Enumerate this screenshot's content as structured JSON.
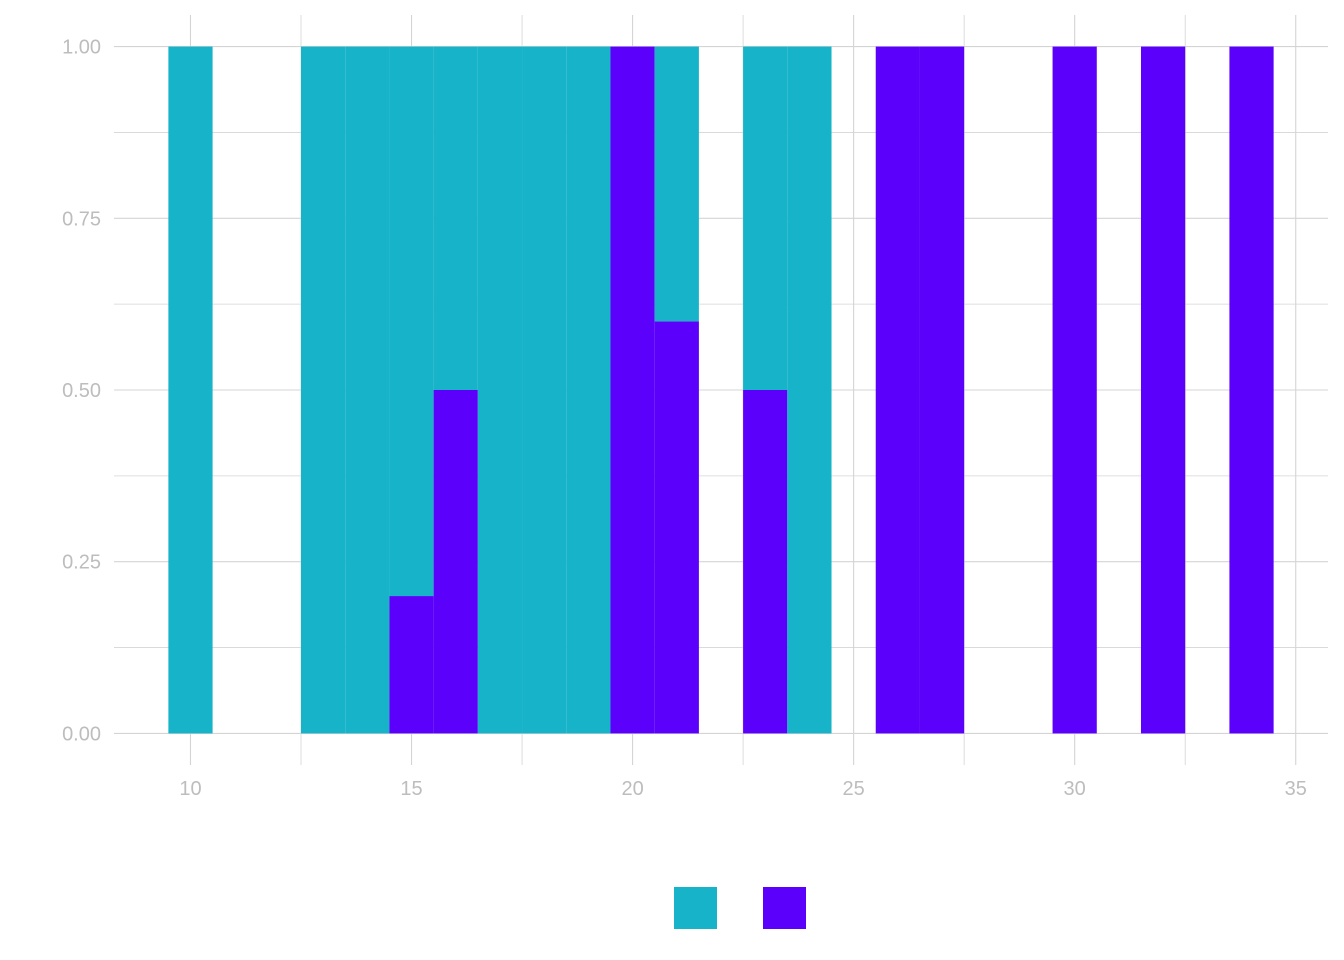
{
  "chart_data": {
    "type": "bar",
    "stacked": "fill",
    "x_axis": {
      "range": [
        8.27,
        35.73
      ],
      "ticks": [
        10,
        15,
        20,
        25,
        30,
        35
      ],
      "tick_labels": [
        "10",
        "15",
        "20",
        "25",
        "30",
        "35"
      ]
    },
    "y_axis": {
      "range": [
        -0.046,
        1.046
      ],
      "ticks": [
        0,
        0.25,
        0.5,
        0.75,
        1.0
      ],
      "tick_labels": [
        "0.00",
        "0.25",
        "0.50",
        "0.75",
        "1.00"
      ]
    },
    "bar_width": 1,
    "x": [
      10,
      13,
      14,
      15,
      16,
      17,
      18,
      19,
      20,
      21,
      23,
      24,
      26,
      27,
      30,
      32,
      34
    ],
    "series": [
      {
        "color": "#17b3c9",
        "values": [
          1,
          1,
          1,
          0.8,
          0.5,
          1,
          1,
          1,
          0,
          0.4,
          0.5,
          1,
          0,
          0,
          0,
          0,
          0
        ]
      },
      {
        "color": "#5b00fa",
        "values": [
          0,
          0,
          0,
          0.2,
          0.5,
          0,
          0,
          0,
          1,
          0.6,
          0.5,
          0,
          1,
          1,
          1,
          1,
          1
        ]
      }
    ],
    "legend": {
      "position": "bottom"
    },
    "grid": true
  }
}
